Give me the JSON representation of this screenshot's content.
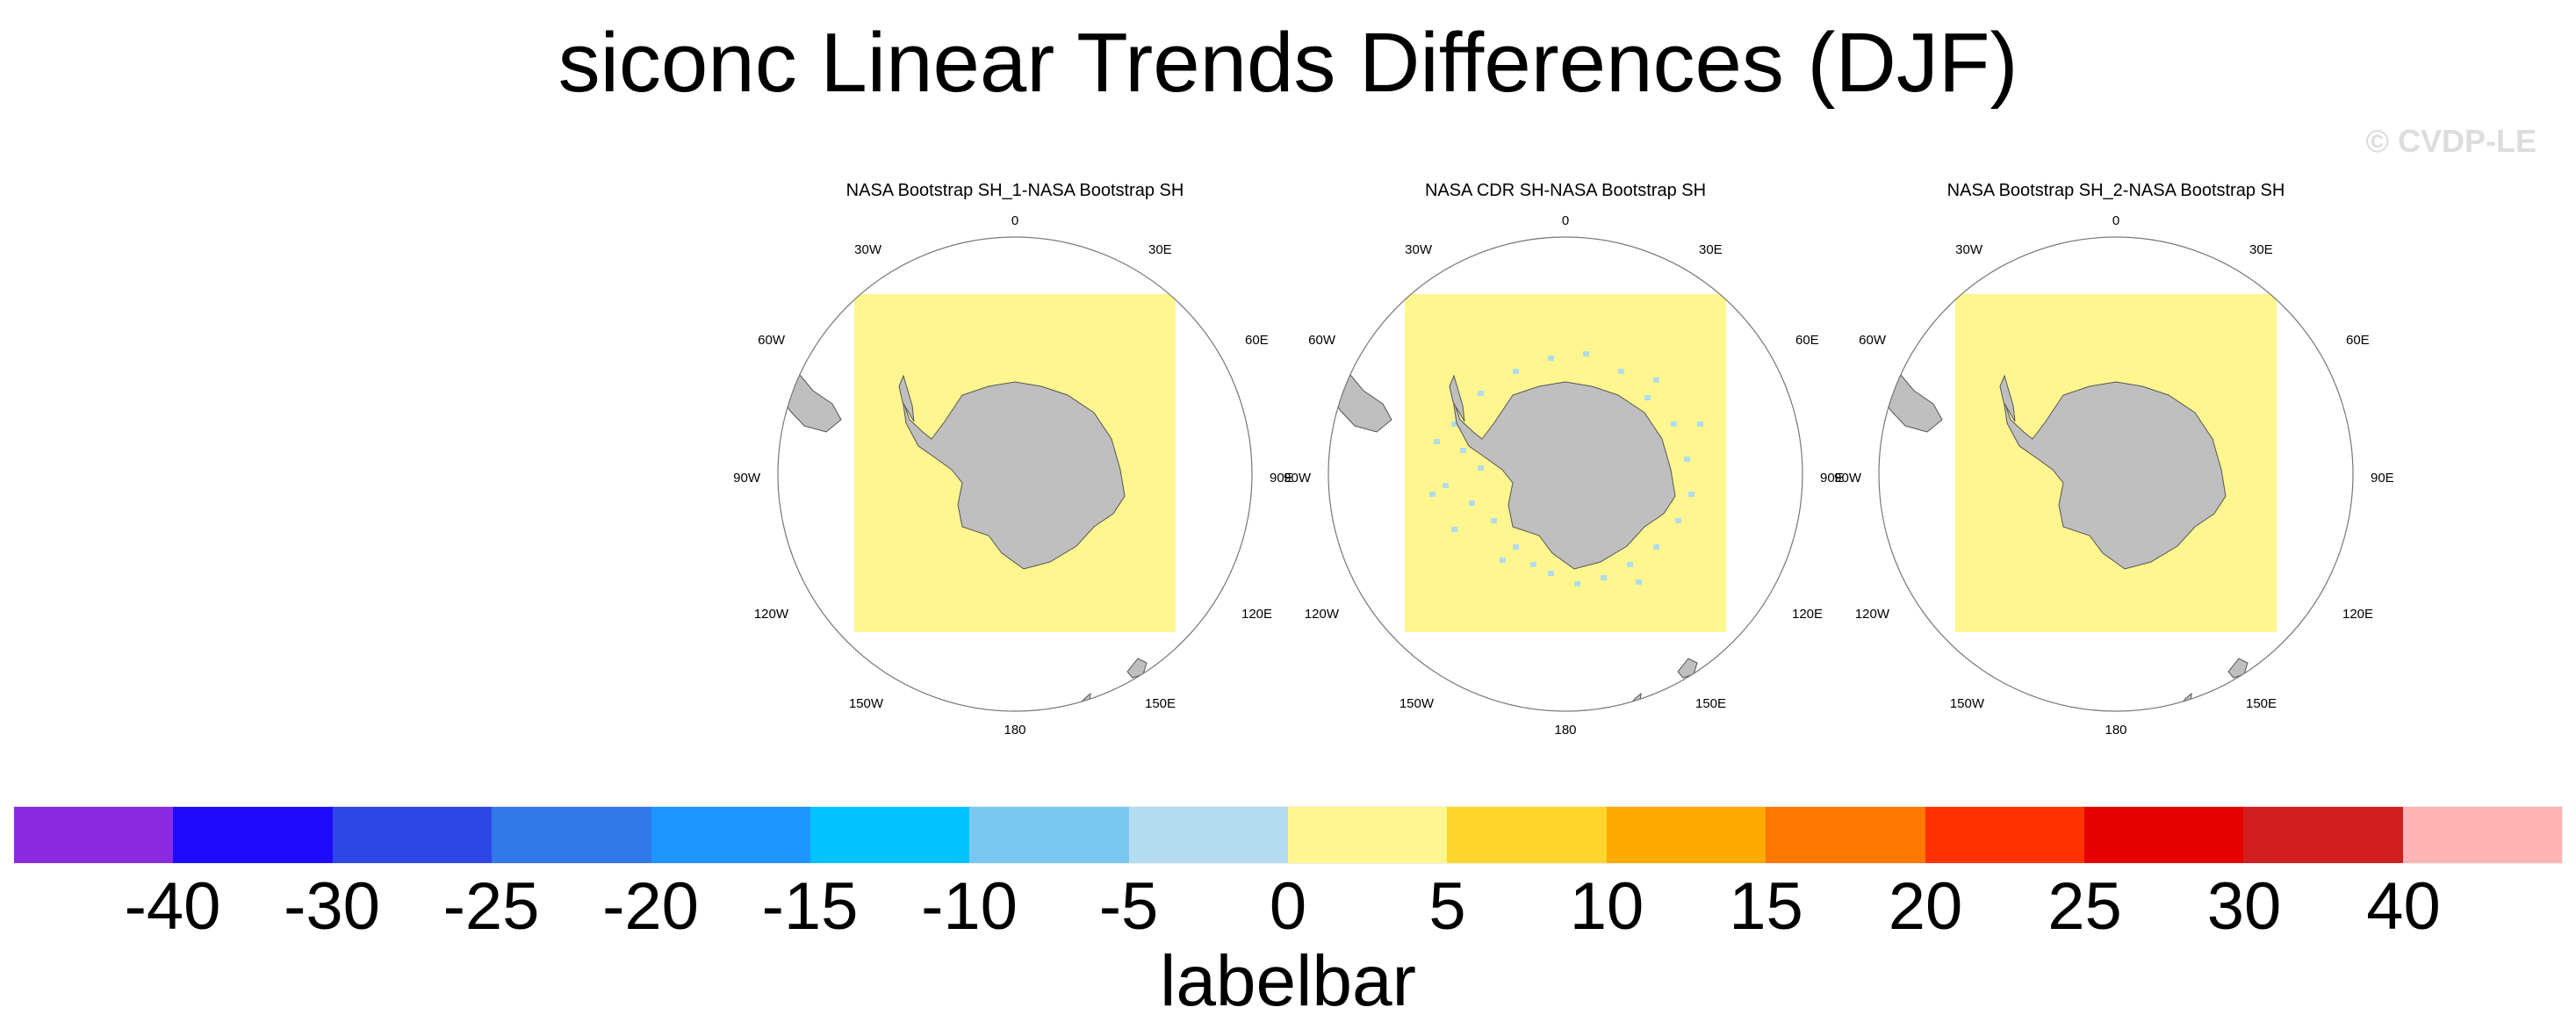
{
  "title": "siconc Linear Trends Differences (DJF)",
  "watermark": "© CVDP-LE",
  "panels": [
    {
      "title": "NASA Bootstrap SH_1-NASA Bootstrap SH",
      "anomaly_patches": false
    },
    {
      "title": "NASA CDR SH-NASA Bootstrap SH",
      "anomaly_patches": true
    },
    {
      "title": "NASA Bootstrap SH_2-NASA Bootstrap SH",
      "anomaly_patches": false
    }
  ],
  "longitude_labels": [
    "0",
    "30E",
    "60E",
    "90E",
    "120E",
    "150E",
    "180",
    "150W",
    "120W",
    "90W",
    "60W",
    "30W"
  ],
  "map_colors": {
    "field": "#fff68f",
    "land": "#bfbfbf",
    "coast": "#555555",
    "ocean": "#ffffff",
    "patch": "#b0dcf0"
  },
  "colorbar": {
    "colors": [
      "#8a2be2",
      "#1e0aff",
      "#2d46e6",
      "#3178e8",
      "#1e96ff",
      "#00c3ff",
      "#78c8f0",
      "#b4dcf0",
      "#fff68f",
      "#ffd52e",
      "#ffaa00",
      "#ff7800",
      "#ff3200",
      "#e60000",
      "#d21e1e",
      "#ffb4b4"
    ],
    "ticks": [
      "-40",
      "-30",
      "-25",
      "-20",
      "-15",
      "-10",
      "-5",
      "0",
      "5",
      "10",
      "15",
      "20",
      "25",
      "30",
      "40"
    ],
    "title": "labelbar"
  }
}
